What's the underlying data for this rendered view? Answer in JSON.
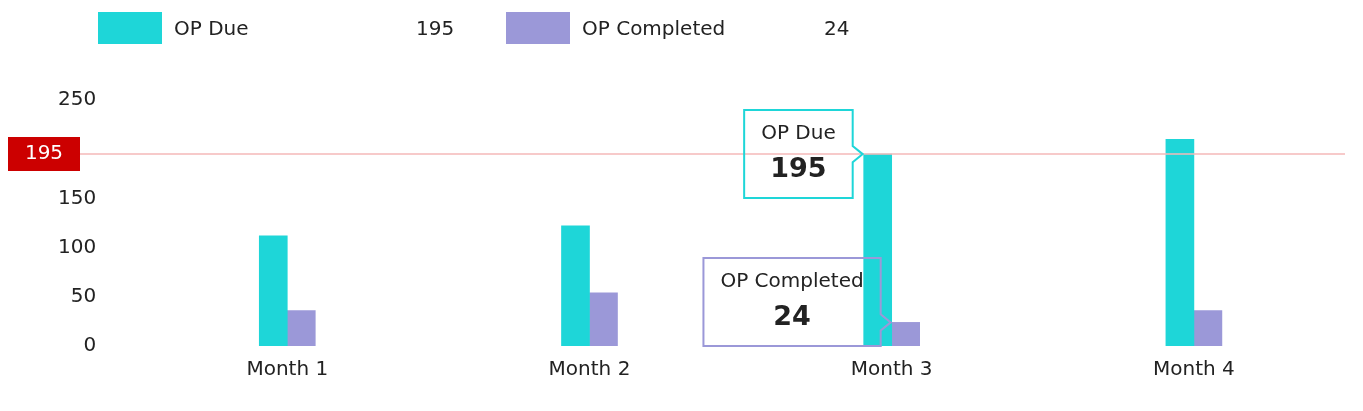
{
  "chart_data": {
    "type": "bar",
    "categories": [
      "Month 1",
      "Month 2",
      "Month 3",
      "Month 4"
    ],
    "series": [
      {
        "name": "OP Due",
        "color": "#1ed6d8",
        "values": [
          112,
          122,
          195,
          210
        ]
      },
      {
        "name": "OP Completed",
        "color": "#9b98d8",
        "values": [
          36,
          54,
          24,
          36
        ]
      }
    ],
    "ylim": [
      0,
      250
    ],
    "yticks": [
      0,
      50,
      100,
      150,
      250
    ],
    "grid": false,
    "legend": "top left",
    "ref_lines": [
      {
        "axis": "y",
        "value": 195,
        "label": "195",
        "color": "#f4b8b8"
      }
    ],
    "annotations": [
      "195",
      "24",
      {
        "text": "OP Due\n195",
        "x": "Month 3",
        "y": 195
      },
      {
        "text": "OP Completed\n24",
        "x": "Month 3",
        "y": 24
      }
    ]
  }
}
